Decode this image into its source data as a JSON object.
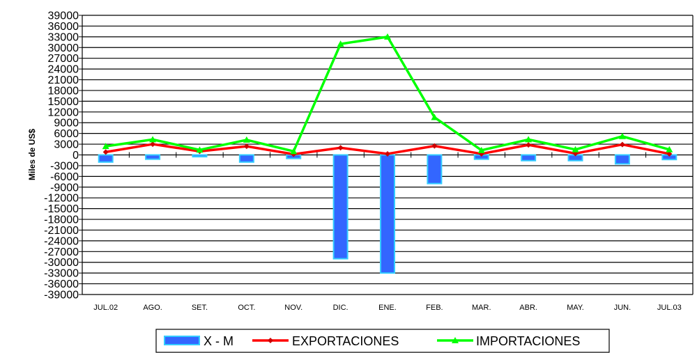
{
  "chart_data": {
    "type": "bar+line",
    "categories": [
      "JUL.02",
      "AGO.",
      "SET.",
      "OCT.",
      "NOV.",
      "DIC.",
      "ENE.",
      "FEB.",
      "MAR.",
      "ABR.",
      "MAY.",
      "JUN.",
      "JUL.03"
    ],
    "ylabel": "Miles de US$",
    "ylim": [
      -39000,
      39000
    ],
    "yticks": [
      39000,
      36000,
      33000,
      30000,
      27000,
      24000,
      21000,
      18000,
      15000,
      12000,
      9000,
      6000,
      3000,
      0,
      -3000,
      -6000,
      -9000,
      -12000,
      -15000,
      -18000,
      -21000,
      -24000,
      -27000,
      -30000,
      -33000,
      -36000,
      -39000
    ],
    "grid": "horizontal",
    "legend_position": "bottom",
    "series": [
      {
        "name": "X - M",
        "type": "bar",
        "color": "#3366ff",
        "edge_color": "#33ccff",
        "values": [
          -2000,
          -1200,
          -500,
          -2000,
          -1000,
          -29000,
          -33000,
          -8000,
          -1200,
          -1600,
          -1600,
          -2500,
          -1300
        ]
      },
      {
        "name": "EXPORTACIONES",
        "type": "line",
        "color": "#ff0000",
        "marker": "diamond",
        "values": [
          800,
          3000,
          1000,
          2400,
          200,
          2000,
          300,
          2500,
          300,
          2800,
          400,
          2900,
          300
        ]
      },
      {
        "name": "IMPORTACIONES",
        "type": "line",
        "color": "#00ff00",
        "marker": "triangle",
        "values": [
          2400,
          4300,
          1400,
          4200,
          1000,
          31000,
          33000,
          10500,
          1300,
          4300,
          1500,
          5200,
          1500
        ]
      }
    ]
  }
}
